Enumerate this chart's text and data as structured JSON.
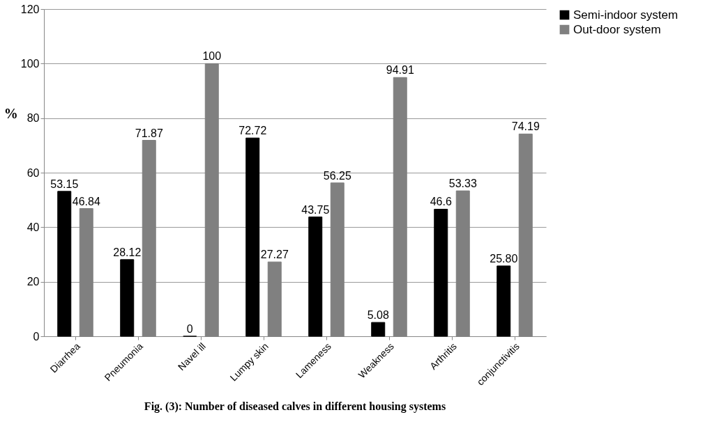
{
  "chart_data": {
    "type": "bar",
    "ylabel": "%",
    "categories": [
      "Diarrhea",
      "Pneumonia",
      "Navel ill",
      "Lumpy skin",
      "Lameness",
      "Weakness",
      "Arthritis",
      "conjunctivitis"
    ],
    "series": [
      {
        "name": "Semi-indoor system",
        "color": "#000000",
        "values": [
          53.15,
          28.12,
          0,
          72.72,
          43.75,
          5.08,
          46.6,
          25.8
        ],
        "value_labels": [
          "53.15",
          "28.12",
          "0",
          "72.72",
          "43.75",
          "5.08",
          "46.6",
          "25.80"
        ]
      },
      {
        "name": "Out-door system",
        "color": "#808080",
        "values": [
          46.84,
          71.87,
          100,
          27.27,
          56.25,
          94.91,
          53.33,
          74.19
        ],
        "value_labels": [
          "46.84",
          "71.87",
          "100",
          "27.27",
          "56.25",
          "94.91",
          "53.33",
          "74.19"
        ]
      }
    ],
    "ylim": [
      0,
      120
    ],
    "yticks": [
      0,
      20,
      40,
      60,
      80,
      100,
      120
    ],
    "grid": "y",
    "legend": "top right",
    "annotations": [
      "Fig. (3): Number of diseased calves in different housing systems"
    ]
  }
}
